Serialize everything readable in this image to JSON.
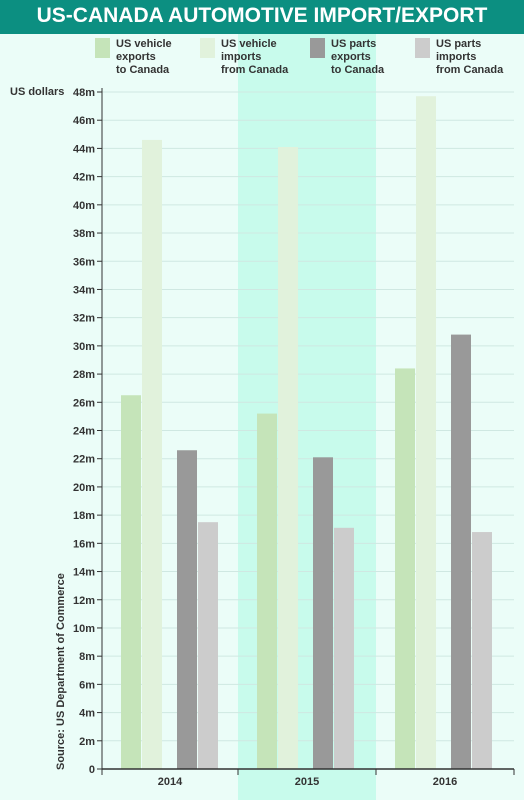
{
  "chart_data": {
    "type": "bar",
    "title": "US-CANADA AUTOMOTIVE IMPORT/EXPORT",
    "ylabel": "US dollars",
    "source": "Source: US Department of Commerce",
    "categories": [
      "2014",
      "2015",
      "2016"
    ],
    "ylim": [
      0,
      48
    ],
    "yticks": [
      0,
      2,
      4,
      6,
      8,
      10,
      12,
      14,
      16,
      18,
      20,
      22,
      24,
      26,
      28,
      30,
      32,
      34,
      36,
      38,
      40,
      42,
      44,
      46,
      48
    ],
    "ytick_labels": [
      "0",
      "2m",
      "4m",
      "6m",
      "8m",
      "10m",
      "12m",
      "14m",
      "16m",
      "18m",
      "20m",
      "22m",
      "24m",
      "26m",
      "28m",
      "30m",
      "32m",
      "34m",
      "36m",
      "38m",
      "40m",
      "42m",
      "44m",
      "46m",
      "48m"
    ],
    "grid": true,
    "legend_position": "top",
    "series": [
      {
        "name": "US vehicle exports\nto Canada",
        "color": "#c5e4b9",
        "values": [
          26.5,
          25.2,
          28.4
        ]
      },
      {
        "name": "US vehicle imports\nfrom Canada",
        "color": "#e1f2dc",
        "values": [
          44.6,
          44.1,
          47.7
        ]
      },
      {
        "name": "US parts exports\nto Canada",
        "color": "#999999",
        "values": [
          22.6,
          22.1,
          30.8
        ]
      },
      {
        "name": "US parts imports\nfrom Canada",
        "color": "#cccccc",
        "values": [
          17.5,
          17.1,
          16.8
        ]
      }
    ]
  },
  "colors": {
    "title_bar": "#0c8f81",
    "background": "#ebfdf8",
    "highlight_band": "#c8fbec",
    "gridline": "#cfe8e2",
    "axis": "#333333"
  }
}
